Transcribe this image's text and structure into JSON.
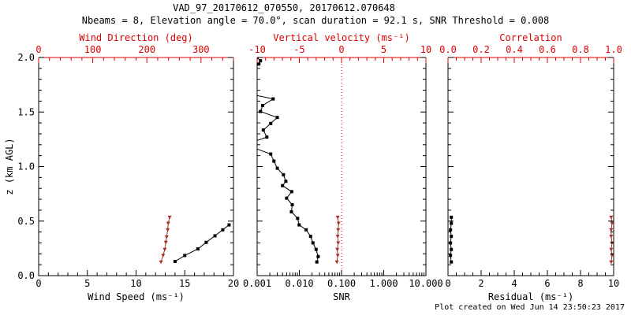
{
  "header": {
    "title": "VAD_97_20170612_070550, 20170612.070648",
    "subtitle": "Nbeams = 8, Elevation angle = 70.0°, scan duration = 92.1 s, SNR Threshold = 0.008"
  },
  "footer": {
    "created": "Plot created on Wed Jun 14 23:50:23 2017"
  },
  "colors": {
    "axis_red": "#dd0000",
    "data_red": "#a83220",
    "black": "#000000",
    "background": "#ffffff"
  },
  "chart_data": [
    {
      "id": "wind",
      "type": "line",
      "x_bottom": {
        "label": "Wind Speed (ms⁻¹)",
        "min": 0,
        "max": 20,
        "tick_values": [
          0,
          5,
          10,
          15,
          20
        ],
        "tick_labels": [
          "0",
          "5",
          "10",
          "15",
          "20"
        ],
        "minor_step": 1
      },
      "x_top": {
        "label": "Wind Direction (deg)",
        "min": 0,
        "max": 360,
        "tick_values": [
          0,
          100,
          200,
          300
        ],
        "tick_labels": [
          "0",
          "100",
          "200",
          "300"
        ],
        "minor_step": 20
      },
      "y": {
        "label": "z (km AGL)",
        "min": 0,
        "max": 2,
        "tick_values": [
          0,
          0.5,
          1,
          1.5,
          2
        ],
        "tick_labels": [
          "0.0",
          "0.5",
          "1.0",
          "1.5",
          "2.0"
        ],
        "minor_step": 0.1
      },
      "series": [
        {
          "name": "wind-speed",
          "axis": "bottom",
          "color": "black",
          "marker": "square",
          "points": [
            [
              14.0,
              0.13
            ],
            [
              15.0,
              0.185
            ],
            [
              16.35,
              0.245
            ],
            [
              17.2,
              0.305
            ],
            [
              18.1,
              0.365
            ],
            [
              18.9,
              0.42
            ],
            [
              19.55,
              0.465
            ]
          ]
        },
        {
          "name": "wind-direction",
          "axis": "top",
          "color": "data_red",
          "marker": "triangle-down",
          "points": [
            [
              226,
              0.125
            ],
            [
              230,
              0.185
            ],
            [
              233,
              0.24
            ],
            [
              235,
              0.305
            ],
            [
              236.5,
              0.355
            ],
            [
              238.5,
              0.42
            ],
            [
              239.5,
              0.48
            ],
            [
              242,
              0.535
            ]
          ]
        }
      ]
    },
    {
      "id": "snr",
      "type": "line",
      "x_bottom": {
        "label": "SNR",
        "min": 0.001,
        "max": 10,
        "log": true,
        "tick_values": [
          0.001,
          0.01,
          0.1,
          1,
          10
        ],
        "tick_labels": [
          "0.001",
          "0.010",
          "0.100",
          "1.000",
          "10.000"
        ]
      },
      "x_top": {
        "label": "Vertical velocity (ms⁻¹)",
        "min": -10,
        "max": 10,
        "tick_values": [
          -10,
          -5,
          0,
          5,
          10
        ],
        "tick_labels": [
          "-10",
          "-5",
          "0",
          "5",
          "10"
        ],
        "minor_step": 1
      },
      "y": {
        "label": null,
        "min": 0,
        "max": 2,
        "tick_values": [
          0,
          0.5,
          1,
          1.5,
          2
        ],
        "tick_labels": null,
        "minor_step": 0.1
      },
      "refline": {
        "axis": "top",
        "value": 0,
        "style": "dotted"
      },
      "series": [
        {
          "name": "snr-profile",
          "axis": "bottom",
          "color": "black",
          "marker": "square",
          "points": [
            [
              0.026,
              0.125
            ],
            [
              0.028,
              0.175
            ],
            [
              0.025,
              0.24
            ],
            [
              0.021,
              0.3
            ],
            [
              0.0185,
              0.36
            ],
            [
              0.0145,
              0.42
            ],
            [
              0.0099,
              0.465
            ],
            [
              0.0091,
              0.525
            ],
            [
              0.0065,
              0.585
            ],
            [
              0.0068,
              0.65
            ],
            [
              0.005,
              0.71
            ],
            [
              0.0066,
              0.77
            ],
            [
              0.004,
              0.825
            ],
            [
              0.0048,
              0.865
            ],
            [
              0.0042,
              0.925
            ],
            [
              0.003,
              0.985
            ],
            [
              0.0025,
              1.05
            ],
            [
              0.0021,
              1.115
            ],
            [
              0.0008,
              1.175
            ],
            [
              0.0008,
              1.225
            ],
            [
              0.0017,
              1.27
            ],
            [
              0.0014,
              1.335
            ],
            [
              0.0021,
              1.395
            ],
            [
              0.003,
              1.45
            ],
            [
              0.0012,
              1.505
            ],
            [
              0.00135,
              1.56
            ],
            [
              0.0024,
              1.62
            ],
            [
              0.0008,
              1.66
            ],
            [
              0.0008,
              1.9
            ],
            [
              0.0011,
              1.94
            ],
            [
              0.0012,
              1.97
            ],
            [
              0.001,
              2.0
            ]
          ]
        },
        {
          "name": "vertical-velocity",
          "axis": "top",
          "color": "data_red",
          "marker": "triangle-down",
          "points": [
            [
              -0.55,
              0.125
            ],
            [
              -0.45,
              0.185
            ],
            [
              -0.5,
              0.24
            ],
            [
              -0.4,
              0.3
            ],
            [
              -0.45,
              0.36
            ],
            [
              -0.4,
              0.42
            ],
            [
              -0.35,
              0.48
            ],
            [
              -0.45,
              0.535
            ]
          ]
        }
      ]
    },
    {
      "id": "residual",
      "type": "line",
      "x_bottom": {
        "label": "Residual (ms⁻¹)",
        "min": 0,
        "max": 10,
        "tick_values": [
          0,
          2,
          4,
          6,
          8,
          10
        ],
        "tick_labels": [
          "0",
          "2",
          "4",
          "6",
          "8",
          "10"
        ],
        "minor_step": 0.5
      },
      "x_top": {
        "label": "Correlation",
        "min": 0,
        "max": 1,
        "tick_values": [
          0,
          0.2,
          0.4,
          0.6,
          0.8,
          1.0
        ],
        "tick_labels": [
          "0.0",
          "0.2",
          "0.4",
          "0.6",
          "0.8",
          "1.0"
        ],
        "minor_step": 0.05
      },
      "y": {
        "label": null,
        "min": 0,
        "max": 2,
        "tick_values": [
          0,
          0.5,
          1,
          1.5,
          2
        ],
        "tick_labels": null,
        "minor_step": 0.1
      },
      "series": [
        {
          "name": "residual",
          "axis": "bottom",
          "color": "black",
          "marker": "square",
          "points": [
            [
              0.2,
              0.125
            ],
            [
              0.15,
              0.185
            ],
            [
              0.2,
              0.24
            ],
            [
              0.15,
              0.3
            ],
            [
              0.2,
              0.36
            ],
            [
              0.15,
              0.42
            ],
            [
              0.2,
              0.48
            ],
            [
              0.2,
              0.535
            ]
          ]
        },
        {
          "name": "correlation",
          "axis": "top",
          "color": "data_red",
          "marker": "triangle-down",
          "points": [
            [
              0.985,
              0.125
            ],
            [
              0.99,
              0.185
            ],
            [
              0.985,
              0.24
            ],
            [
              0.99,
              0.3
            ],
            [
              0.985,
              0.36
            ],
            [
              0.985,
              0.42
            ],
            [
              0.99,
              0.48
            ],
            [
              0.985,
              0.535
            ]
          ]
        }
      ]
    }
  ]
}
